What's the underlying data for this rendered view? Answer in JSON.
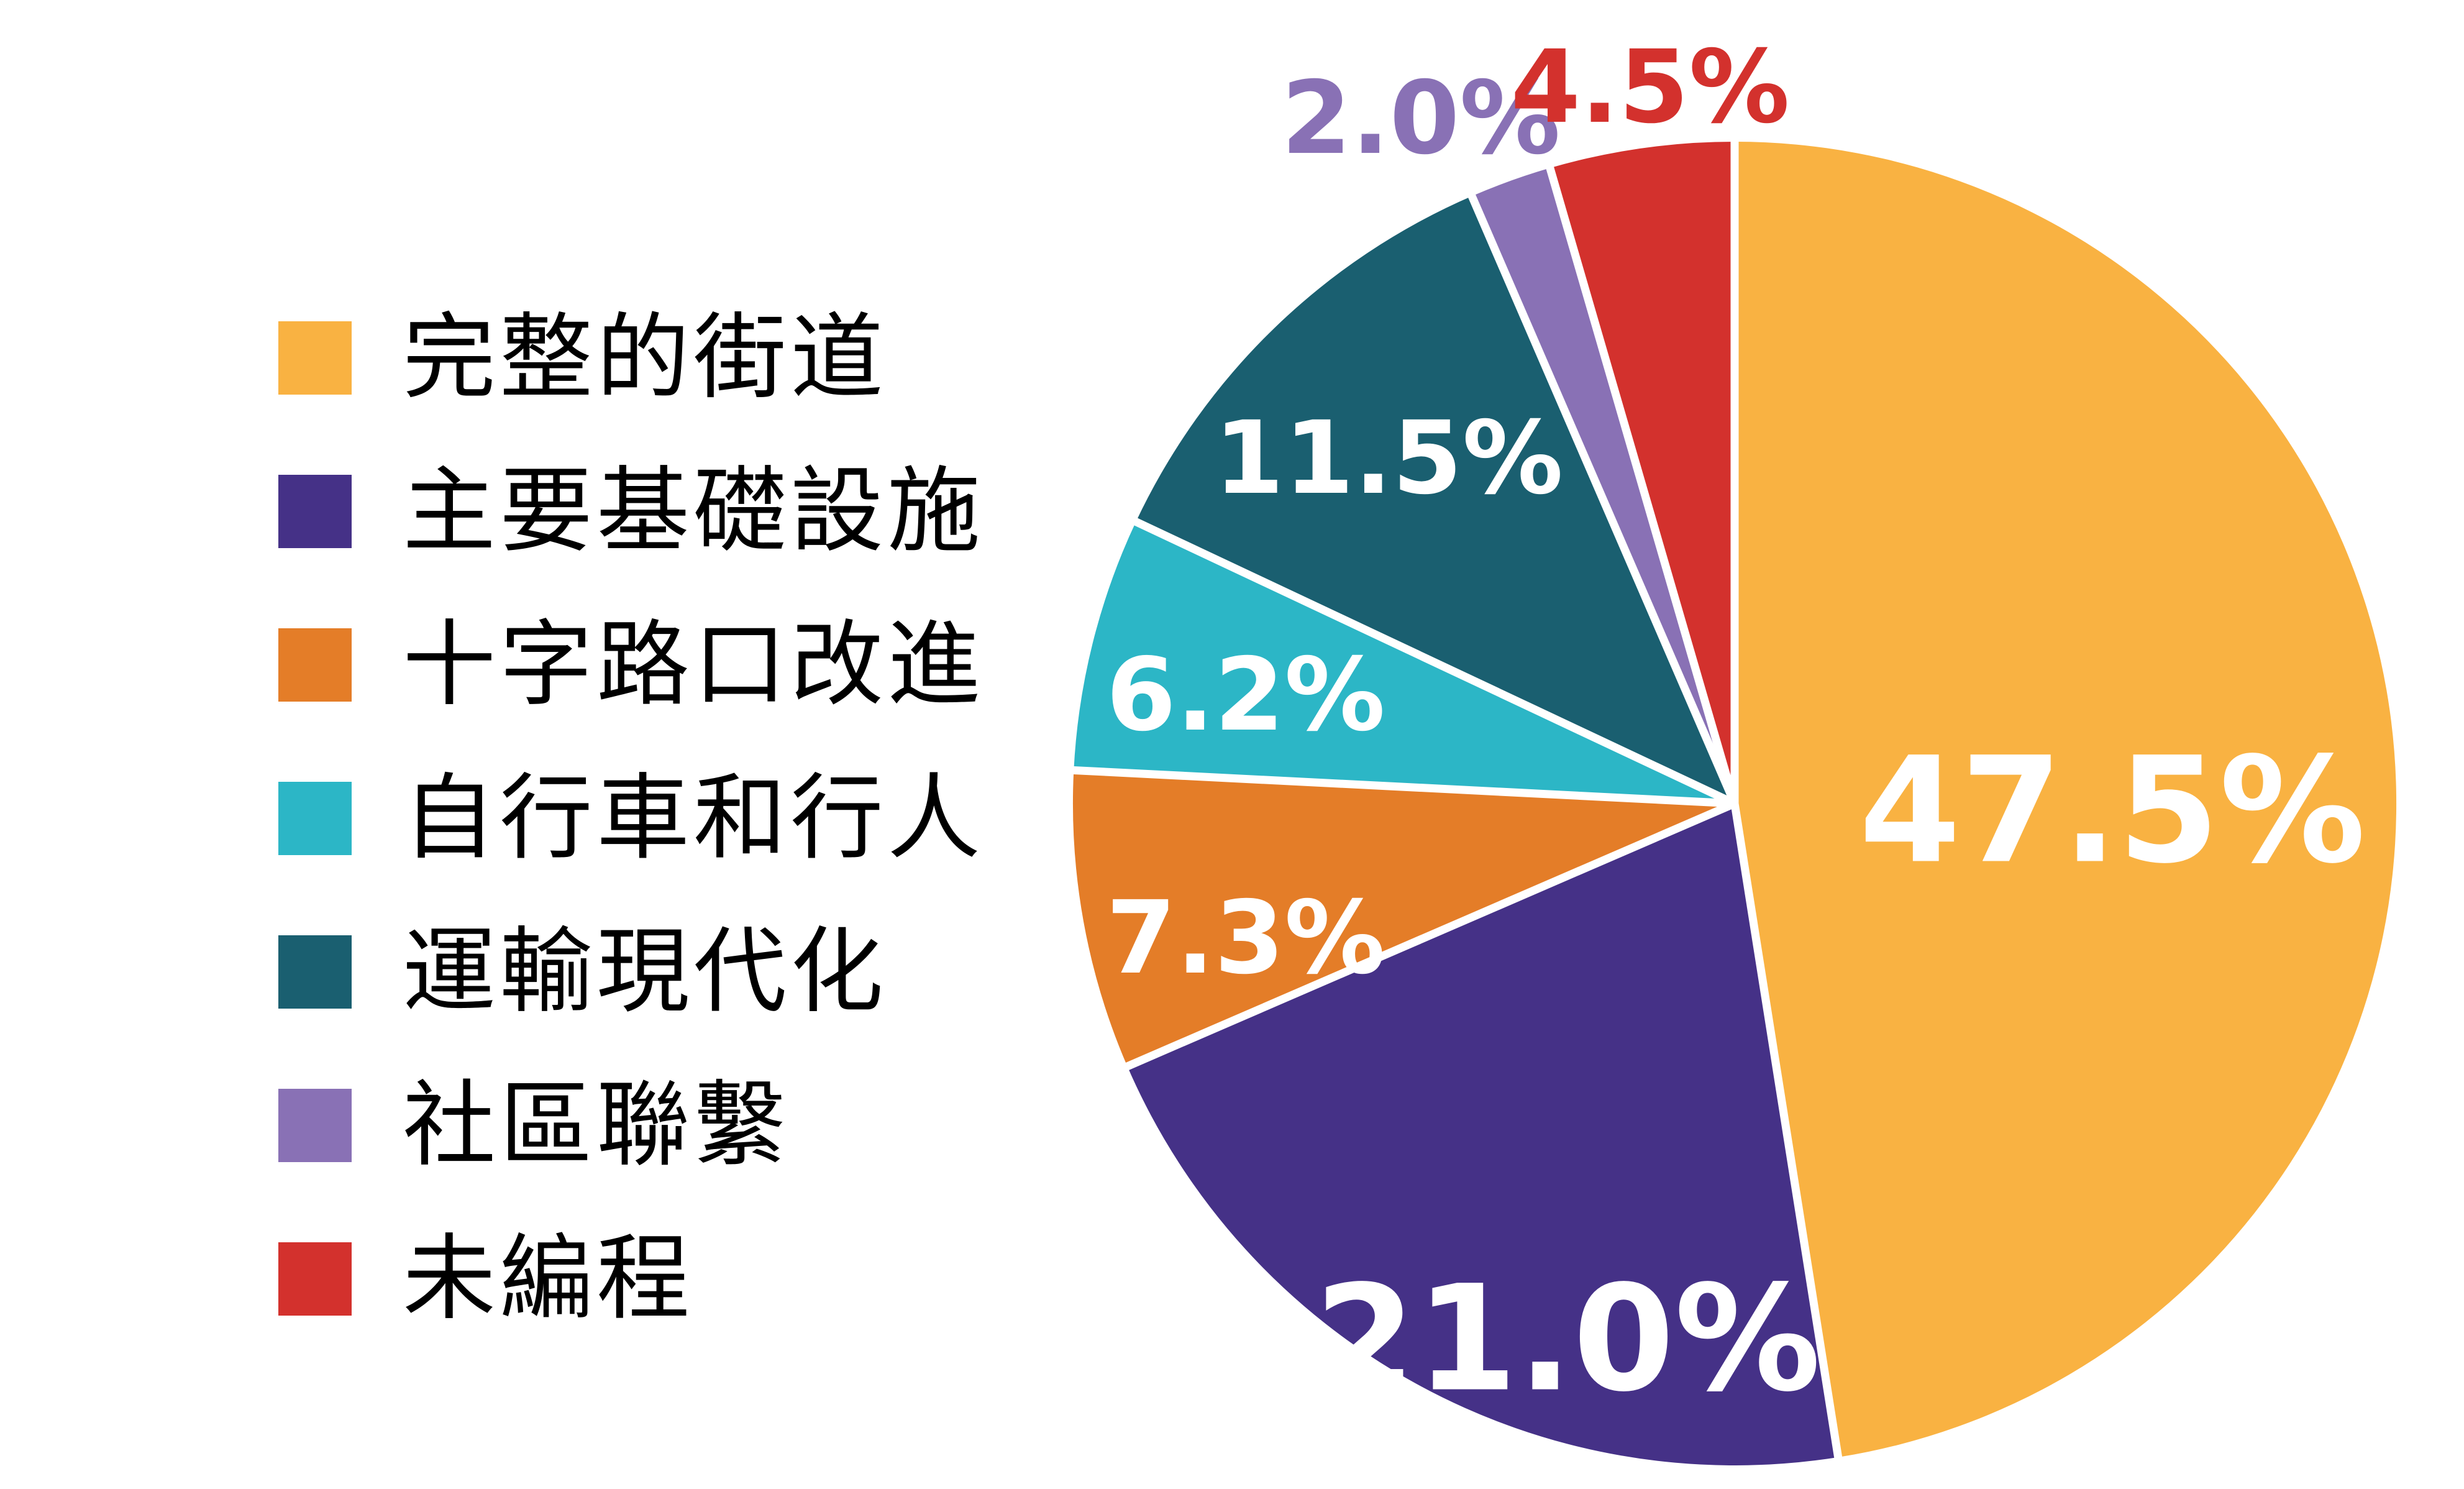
{
  "chart_data": {
    "type": "pie",
    "title": "",
    "legend_position": "left",
    "start_angle_deg": 0,
    "direction": "clockwise",
    "grid": false,
    "categories": [
      "完整的街道",
      "主要基礎設施",
      "十字路口改進",
      "自行車和行人",
      "運輸現代化",
      "社區聯繫",
      "未編程"
    ],
    "values": [
      47.5,
      21.0,
      7.3,
      6.2,
      11.5,
      2.0,
      4.5
    ],
    "unit": "%",
    "labels": [
      "47.5%",
      "21.0%",
      "7.3%",
      "6.2%",
      "11.5%",
      "2.0%",
      "4.5%"
    ],
    "colors": [
      "#F9B242",
      "#453187",
      "#E47D28",
      "#2CB6C6",
      "#1A5F70",
      "#8971B5",
      "#D3312D"
    ],
    "label_text_color_inside": "#FFFFFF",
    "background_color": "#FFFFFF",
    "separator_color": "#FFFFFF"
  }
}
